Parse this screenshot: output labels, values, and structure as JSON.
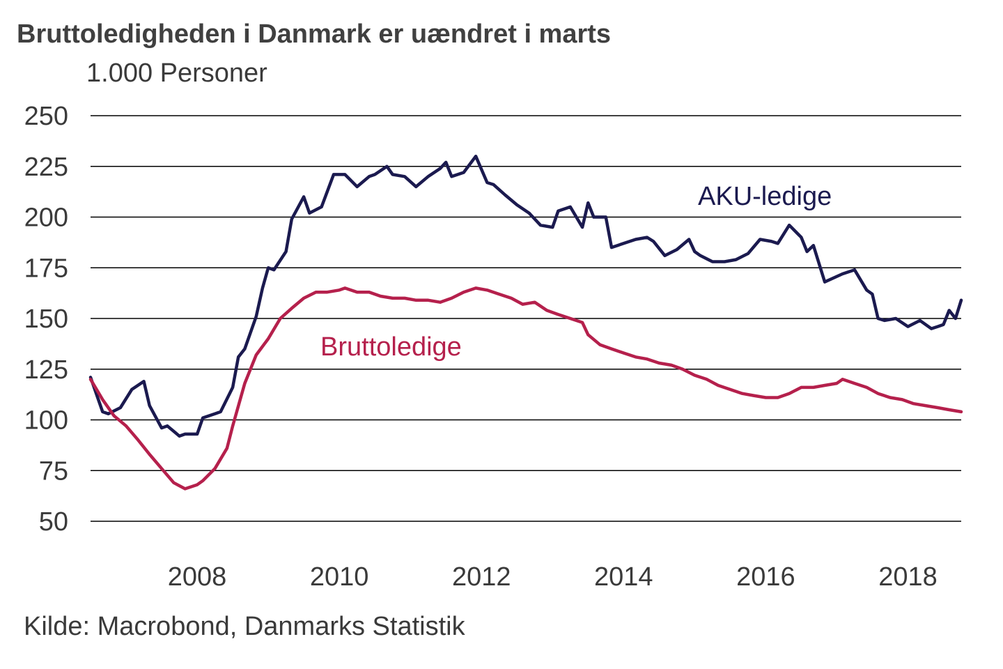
{
  "title": "Bruttoledigheden i Danmark er uændret i marts",
  "unit_label": "1.000 Personer",
  "source": "Kilde: Macrobond, Danmarks Statistik",
  "colors": {
    "aku": "#1b1a4f",
    "brutto": "#b5204c",
    "grid": "#000000",
    "text": "#3a3a3a"
  },
  "chart_data": {
    "type": "line",
    "title": "Bruttoledigheden i Danmark er uændret i marts",
    "ylabel": "1.000 Personer",
    "xlabel": "",
    "ylim": [
      50,
      250
    ],
    "yticks": [
      50,
      75,
      100,
      125,
      150,
      175,
      200,
      225,
      250
    ],
    "xlim": [
      2007.0,
      2019.25
    ],
    "xticks": [
      2008,
      2010,
      2012,
      2014,
      2016,
      2018
    ],
    "grid": "horizontal",
    "series": [
      {
        "name": "AKU-ledige",
        "label": "AKU-ledige",
        "color": "#1b1a4f",
        "x": [
          2007.0,
          2007.17,
          2007.25,
          2007.42,
          2007.58,
          2007.75,
          2007.83,
          2008.0,
          2008.08,
          2008.25,
          2008.33,
          2008.5,
          2008.58,
          2008.75,
          2008.83,
          2009.0,
          2009.08,
          2009.17,
          2009.33,
          2009.42,
          2009.5,
          2009.58,
          2009.75,
          2009.83,
          2010.0,
          2010.08,
          2010.25,
          2010.42,
          2010.58,
          2010.75,
          2010.92,
          2011.0,
          2011.17,
          2011.25,
          2011.42,
          2011.58,
          2011.75,
          2011.92,
          2012.0,
          2012.08,
          2012.25,
          2012.42,
          2012.58,
          2012.67,
          2012.83,
          2013.0,
          2013.17,
          2013.33,
          2013.5,
          2013.58,
          2013.75,
          2013.92,
          2014.0,
          2014.08,
          2014.25,
          2014.33,
          2014.5,
          2014.67,
          2014.83,
          2014.92,
          2015.08,
          2015.25,
          2015.42,
          2015.5,
          2015.58,
          2015.75,
          2015.92,
          2016.08,
          2016.25,
          2016.42,
          2016.58,
          2016.67,
          2016.83,
          2017.0,
          2017.08,
          2017.17,
          2017.33,
          2017.58,
          2017.75,
          2017.92,
          2018.0,
          2018.08,
          2018.17,
          2018.33,
          2018.5,
          2018.67,
          2018.83,
          2018.92,
          2019.0,
          2019.08,
          2019.17,
          2019.25
        ],
        "values": [
          121,
          104,
          103,
          106,
          115,
          119,
          107,
          96,
          97,
          92,
          93,
          93,
          101,
          103,
          104,
          116,
          131,
          135,
          151,
          165,
          175,
          174,
          183,
          199,
          210,
          202,
          205,
          221,
          221,
          215,
          220,
          221,
          225,
          221,
          220,
          215,
          220,
          224,
          227,
          220,
          222,
          230,
          217,
          216,
          211,
          206,
          202,
          196,
          195,
          203,
          205,
          195,
          207,
          200,
          200,
          185,
          187,
          189,
          190,
          188,
          181,
          184,
          189,
          183,
          181,
          178,
          178,
          179,
          182,
          189,
          188,
          187,
          196,
          190,
          183,
          186,
          168,
          172,
          174,
          164,
          162,
          150,
          149,
          150,
          146,
          149,
          145,
          146,
          147,
          154,
          150,
          159
        ]
      },
      {
        "name": "Bruttoledige",
        "label": "Bruttoledige",
        "color": "#b5204c",
        "x": [
          2007.0,
          2007.17,
          2007.33,
          2007.5,
          2007.67,
          2007.83,
          2008.0,
          2008.17,
          2008.33,
          2008.5,
          2008.58,
          2008.75,
          2008.92,
          2009.0,
          2009.17,
          2009.33,
          2009.5,
          2009.67,
          2009.83,
          2010.0,
          2010.17,
          2010.33,
          2010.5,
          2010.58,
          2010.75,
          2010.92,
          2011.08,
          2011.25,
          2011.42,
          2011.58,
          2011.75,
          2011.92,
          2012.08,
          2012.25,
          2012.42,
          2012.58,
          2012.75,
          2012.92,
          2013.08,
          2013.25,
          2013.42,
          2013.58,
          2013.75,
          2013.92,
          2014.0,
          2014.17,
          2014.33,
          2014.5,
          2014.67,
          2014.83,
          2015.0,
          2015.17,
          2015.33,
          2015.5,
          2015.67,
          2015.83,
          2016.0,
          2016.17,
          2016.33,
          2016.5,
          2016.67,
          2016.83,
          2017.0,
          2017.17,
          2017.33,
          2017.5,
          2017.58,
          2017.75,
          2017.92,
          2018.08,
          2018.25,
          2018.42,
          2018.58,
          2018.75,
          2018.92,
          2019.08,
          2019.25
        ],
        "values": [
          120,
          110,
          102,
          97,
          90,
          83,
          76,
          69,
          66,
          68,
          70,
          76,
          86,
          97,
          118,
          132,
          140,
          150,
          155,
          160,
          163,
          163,
          164,
          165,
          163,
          163,
          161,
          160,
          160,
          159,
          159,
          158,
          160,
          163,
          165,
          164,
          162,
          160,
          157,
          158,
          154,
          152,
          150,
          148,
          142,
          137,
          135,
          133,
          131,
          130,
          128,
          127,
          125,
          122,
          120,
          117,
          115,
          113,
          112,
          111,
          111,
          113,
          116,
          116,
          117,
          118,
          120,
          118,
          116,
          113,
          111,
          110,
          108,
          107,
          106,
          105,
          104
        ]
      }
    ]
  }
}
